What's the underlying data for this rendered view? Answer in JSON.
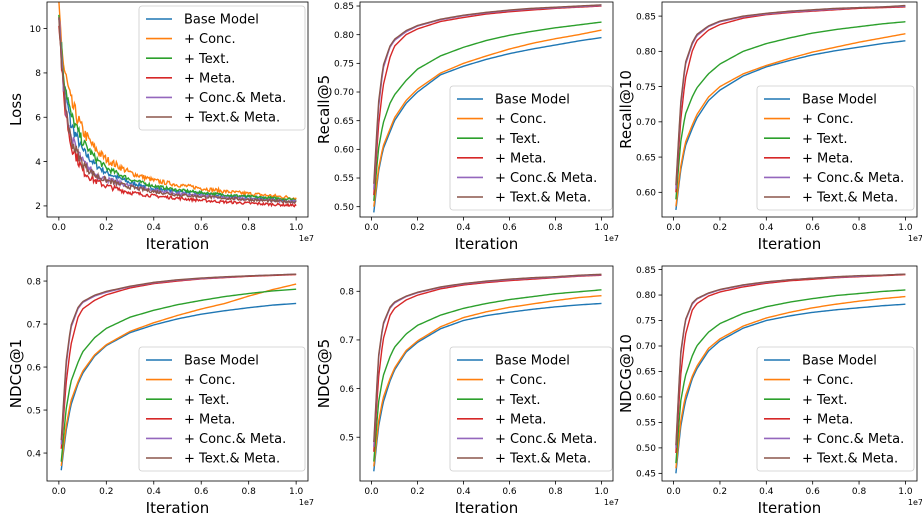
{
  "figure": {
    "legend_labels": [
      "Base Model",
      "+ Conc.",
      "+ Text.",
      "+ Meta.",
      "+ Conc.& Meta.",
      "+ Text.& Meta."
    ],
    "colors": [
      "#1f77b4",
      "#ff7f0e",
      "#2ca02c",
      "#d62728",
      "#9467bd",
      "#8c564b"
    ]
  },
  "chart_data": [
    {
      "type": "line",
      "xlabel": "Iteration",
      "ylabel": "Loss",
      "x_offset_label": "1e7",
      "xlim": [
        -0.05,
        1.05
      ],
      "ylim": [
        1.5,
        11.2
      ],
      "xticks": [
        0.0,
        0.2,
        0.4,
        0.6,
        0.8,
        1.0
      ],
      "xtick_labels": [
        "0.0",
        "0.2",
        "0.4",
        "0.6",
        "0.8",
        "1.0"
      ],
      "yticks": [
        2,
        4,
        6,
        8,
        10
      ],
      "ytick_labels": [
        "2",
        "4",
        "6",
        "8",
        "10"
      ],
      "legend_position": "top-right",
      "noisy": true,
      "x": [
        0.0,
        0.02,
        0.05,
        0.1,
        0.15,
        0.2,
        0.3,
        0.4,
        0.5,
        0.6,
        0.7,
        0.8,
        0.9,
        1.0
      ],
      "series": [
        {
          "name": "Base Model",
          "values": [
            10.8,
            7.6,
            5.7,
            4.5,
            3.9,
            3.5,
            3.05,
            2.8,
            2.65,
            2.55,
            2.45,
            2.4,
            2.3,
            2.2
          ]
        },
        {
          "name": "+ Conc.",
          "values": [
            10.9,
            8.3,
            6.7,
            5.4,
            4.6,
            4.1,
            3.5,
            3.15,
            2.95,
            2.8,
            2.65,
            2.55,
            2.45,
            2.35
          ]
        },
        {
          "name": "+ Text.",
          "values": [
            10.7,
            7.9,
            6.1,
            4.9,
            4.2,
            3.7,
            3.2,
            2.9,
            2.72,
            2.6,
            2.5,
            2.42,
            2.35,
            2.3
          ]
        },
        {
          "name": "+ Meta.",
          "values": [
            10.5,
            6.8,
            4.8,
            3.6,
            3.15,
            2.9,
            2.6,
            2.45,
            2.35,
            2.25,
            2.18,
            2.12,
            2.07,
            2.02
          ]
        },
        {
          "name": "+ Conc.& Meta.",
          "values": [
            10.6,
            7.2,
            5.1,
            4.0,
            3.45,
            3.2,
            2.9,
            2.7,
            2.55,
            2.45,
            2.38,
            2.3,
            2.25,
            2.2
          ]
        },
        {
          "name": "+ Text.& Meta.",
          "values": [
            10.6,
            7.1,
            5.0,
            3.9,
            3.4,
            3.15,
            2.85,
            2.65,
            2.5,
            2.42,
            2.35,
            2.28,
            2.22,
            2.18
          ]
        }
      ]
    },
    {
      "type": "line",
      "xlabel": "Iteration",
      "ylabel": "Recall@5",
      "x_offset_label": "1e7",
      "xlim": [
        -0.05,
        1.05
      ],
      "ylim": [
        0.482,
        0.857
      ],
      "xticks": [
        0.0,
        0.2,
        0.4,
        0.6,
        0.8,
        1.0
      ],
      "xtick_labels": [
        "0.0",
        "0.2",
        "0.4",
        "0.6",
        "0.8",
        "1.0"
      ],
      "yticks": [
        0.5,
        0.55,
        0.6,
        0.65,
        0.7,
        0.75,
        0.8,
        0.85
      ],
      "ytick_labels": [
        "0.50",
        "0.55",
        "0.60",
        "0.65",
        "0.70",
        "0.75",
        "0.80",
        "0.85"
      ],
      "legend_position": "lower-right",
      "x": [
        0.01,
        0.03,
        0.05,
        0.08,
        0.1,
        0.15,
        0.2,
        0.3,
        0.4,
        0.5,
        0.6,
        0.7,
        0.8,
        0.9,
        1.0
      ],
      "series": [
        {
          "name": "Base Model",
          "values": [
            0.49,
            0.56,
            0.6,
            0.63,
            0.65,
            0.68,
            0.7,
            0.73,
            0.745,
            0.757,
            0.767,
            0.775,
            0.782,
            0.789,
            0.795
          ]
        },
        {
          "name": "+ Conc.",
          "values": [
            0.5,
            0.565,
            0.605,
            0.635,
            0.655,
            0.685,
            0.705,
            0.733,
            0.75,
            0.763,
            0.775,
            0.785,
            0.793,
            0.8,
            0.808
          ]
        },
        {
          "name": "+ Text.",
          "values": [
            0.51,
            0.6,
            0.645,
            0.68,
            0.695,
            0.72,
            0.74,
            0.763,
            0.778,
            0.79,
            0.799,
            0.806,
            0.812,
            0.817,
            0.822
          ]
        },
        {
          "name": "+ Meta.",
          "values": [
            0.52,
            0.64,
            0.71,
            0.76,
            0.78,
            0.8,
            0.81,
            0.823,
            0.83,
            0.836,
            0.84,
            0.843,
            0.846,
            0.848,
            0.85
          ]
        },
        {
          "name": "+ Conc.& Meta.",
          "values": [
            0.53,
            0.67,
            0.74,
            0.778,
            0.79,
            0.805,
            0.815,
            0.826,
            0.833,
            0.838,
            0.842,
            0.845,
            0.847,
            0.849,
            0.851
          ]
        },
        {
          "name": "+ Text.& Meta.",
          "values": [
            0.54,
            0.68,
            0.745,
            0.78,
            0.792,
            0.807,
            0.816,
            0.827,
            0.834,
            0.839,
            0.843,
            0.846,
            0.848,
            0.85,
            0.852
          ]
        }
      ]
    },
    {
      "type": "line",
      "xlabel": "Iteration",
      "ylabel": "Recall@10",
      "x_offset_label": "1e7",
      "xlim": [
        -0.05,
        1.05
      ],
      "ylim": [
        0.565,
        0.87
      ],
      "xticks": [
        0.0,
        0.2,
        0.4,
        0.6,
        0.8,
        1.0
      ],
      "xtick_labels": [
        "0.0",
        "0.2",
        "0.4",
        "0.6",
        "0.8",
        "1.0"
      ],
      "yticks": [
        0.6,
        0.65,
        0.7,
        0.75,
        0.8,
        0.85
      ],
      "ytick_labels": [
        "0.60",
        "0.65",
        "0.70",
        "0.75",
        "0.80",
        "0.85"
      ],
      "legend_position": "lower-right",
      "x": [
        0.01,
        0.03,
        0.05,
        0.08,
        0.1,
        0.15,
        0.2,
        0.3,
        0.4,
        0.5,
        0.6,
        0.7,
        0.8,
        0.9,
        1.0
      ],
      "series": [
        {
          "name": "Base Model",
          "values": [
            0.575,
            0.63,
            0.665,
            0.69,
            0.705,
            0.73,
            0.745,
            0.765,
            0.778,
            0.787,
            0.795,
            0.801,
            0.806,
            0.811,
            0.815
          ]
        },
        {
          "name": "+ Conc.",
          "values": [
            0.58,
            0.635,
            0.67,
            0.695,
            0.71,
            0.735,
            0.75,
            0.768,
            0.78,
            0.79,
            0.799,
            0.806,
            0.813,
            0.819,
            0.825
          ]
        },
        {
          "name": "+ Text.",
          "values": [
            0.59,
            0.67,
            0.71,
            0.735,
            0.748,
            0.768,
            0.782,
            0.8,
            0.811,
            0.819,
            0.826,
            0.831,
            0.835,
            0.839,
            0.842
          ]
        },
        {
          "name": "+ Meta.",
          "values": [
            0.6,
            0.7,
            0.76,
            0.8,
            0.815,
            0.83,
            0.838,
            0.847,
            0.852,
            0.855,
            0.857,
            0.859,
            0.861,
            0.862,
            0.863
          ]
        },
        {
          "name": "+ Conc.& Meta.",
          "values": [
            0.605,
            0.72,
            0.78,
            0.81,
            0.822,
            0.835,
            0.842,
            0.849,
            0.853,
            0.856,
            0.858,
            0.86,
            0.862,
            0.863,
            0.864
          ]
        },
        {
          "name": "+ Text.& Meta.",
          "values": [
            0.61,
            0.725,
            0.783,
            0.812,
            0.824,
            0.836,
            0.843,
            0.85,
            0.854,
            0.857,
            0.859,
            0.861,
            0.862,
            0.863,
            0.865
          ]
        }
      ]
    },
    {
      "type": "line",
      "xlabel": "Iteration",
      "ylabel": "NDCG@1",
      "x_offset_label": "1e7",
      "xlim": [
        -0.05,
        1.05
      ],
      "ylim": [
        0.335,
        0.835
      ],
      "xticks": [
        0.0,
        0.2,
        0.4,
        0.6,
        0.8,
        1.0
      ],
      "xtick_labels": [
        "0.0",
        "0.2",
        "0.4",
        "0.6",
        "0.8",
        "1.0"
      ],
      "yticks": [
        0.4,
        0.5,
        0.6,
        0.7,
        0.8
      ],
      "ytick_labels": [
        "0.4",
        "0.5",
        "0.6",
        "0.7",
        "0.8"
      ],
      "legend_position": "lower-right",
      "x": [
        0.01,
        0.03,
        0.05,
        0.08,
        0.1,
        0.15,
        0.2,
        0.3,
        0.4,
        0.5,
        0.6,
        0.7,
        0.8,
        0.9,
        1.0
      ],
      "series": [
        {
          "name": "Base Model",
          "values": [
            0.36,
            0.45,
            0.51,
            0.56,
            0.585,
            0.625,
            0.65,
            0.68,
            0.698,
            0.712,
            0.723,
            0.731,
            0.738,
            0.744,
            0.748
          ]
        },
        {
          "name": "+ Conc.",
          "values": [
            0.37,
            0.46,
            0.52,
            0.565,
            0.59,
            0.628,
            0.652,
            0.683,
            0.703,
            0.72,
            0.735,
            0.748,
            0.765,
            0.78,
            0.793
          ]
        },
        {
          "name": "+ Text.",
          "values": [
            0.38,
            0.5,
            0.565,
            0.61,
            0.635,
            0.668,
            0.69,
            0.716,
            0.732,
            0.745,
            0.755,
            0.764,
            0.771,
            0.777,
            0.781
          ]
        },
        {
          "name": "+ Meta.",
          "values": [
            0.41,
            0.56,
            0.65,
            0.715,
            0.735,
            0.755,
            0.768,
            0.784,
            0.794,
            0.8,
            0.805,
            0.808,
            0.811,
            0.813,
            0.815
          ]
        },
        {
          "name": "+ Conc.& Meta.",
          "values": [
            0.42,
            0.6,
            0.69,
            0.735,
            0.75,
            0.765,
            0.774,
            0.787,
            0.796,
            0.802,
            0.806,
            0.809,
            0.812,
            0.814,
            0.816
          ]
        },
        {
          "name": "+ Text.& Meta.",
          "values": [
            0.43,
            0.61,
            0.695,
            0.738,
            0.752,
            0.767,
            0.776,
            0.788,
            0.797,
            0.803,
            0.807,
            0.81,
            0.812,
            0.814,
            0.816
          ]
        }
      ]
    },
    {
      "type": "line",
      "xlabel": "Iteration",
      "ylabel": "NDCG@5",
      "x_offset_label": "1e7",
      "xlim": [
        -0.05,
        1.05
      ],
      "ylim": [
        0.41,
        0.852
      ],
      "xticks": [
        0.0,
        0.2,
        0.4,
        0.6,
        0.8,
        1.0
      ],
      "xtick_labels": [
        "0.0",
        "0.2",
        "0.4",
        "0.6",
        "0.8",
        "1.0"
      ],
      "yticks": [
        0.5,
        0.6,
        0.7,
        0.8
      ],
      "ytick_labels": [
        "0.5",
        "0.6",
        "0.7",
        "0.8"
      ],
      "legend_position": "lower-right",
      "x": [
        0.01,
        0.03,
        0.05,
        0.08,
        0.1,
        0.15,
        0.2,
        0.3,
        0.4,
        0.5,
        0.6,
        0.7,
        0.8,
        0.9,
        1.0
      ],
      "series": [
        {
          "name": "Base Model",
          "values": [
            0.43,
            0.52,
            0.57,
            0.615,
            0.638,
            0.675,
            0.695,
            0.723,
            0.74,
            0.75,
            0.757,
            0.763,
            0.768,
            0.772,
            0.775
          ]
        },
        {
          "name": "+ Conc.",
          "values": [
            0.44,
            0.53,
            0.58,
            0.62,
            0.642,
            0.678,
            0.698,
            0.727,
            0.746,
            0.758,
            0.767,
            0.774,
            0.781,
            0.787,
            0.791
          ]
        },
        {
          "name": "+ Text.",
          "values": [
            0.45,
            0.57,
            0.625,
            0.665,
            0.685,
            0.712,
            0.73,
            0.751,
            0.765,
            0.775,
            0.783,
            0.789,
            0.795,
            0.799,
            0.803
          ]
        },
        {
          "name": "+ Meta.",
          "values": [
            0.47,
            0.62,
            0.7,
            0.75,
            0.765,
            0.782,
            0.792,
            0.805,
            0.813,
            0.818,
            0.822,
            0.825,
            0.828,
            0.831,
            0.833
          ]
        },
        {
          "name": "+ Conc.& Meta.",
          "values": [
            0.48,
            0.66,
            0.73,
            0.765,
            0.776,
            0.789,
            0.797,
            0.808,
            0.815,
            0.82,
            0.824,
            0.827,
            0.829,
            0.832,
            0.834
          ]
        },
        {
          "name": "+ Text.& Meta.",
          "values": [
            0.49,
            0.665,
            0.733,
            0.767,
            0.778,
            0.79,
            0.798,
            0.809,
            0.816,
            0.821,
            0.825,
            0.828,
            0.83,
            0.833,
            0.835
          ]
        }
      ]
    },
    {
      "type": "line",
      "xlabel": "Iteration",
      "ylabel": "NDCG@10",
      "x_offset_label": "1e7",
      "xlim": [
        -0.05,
        1.05
      ],
      "ylim": [
        0.435,
        0.857
      ],
      "xticks": [
        0.0,
        0.2,
        0.4,
        0.6,
        0.8,
        1.0
      ],
      "xtick_labels": [
        "0.0",
        "0.2",
        "0.4",
        "0.6",
        "0.8",
        "1.0"
      ],
      "yticks": [
        0.45,
        0.5,
        0.55,
        0.6,
        0.65,
        0.7,
        0.75,
        0.8,
        0.85
      ],
      "ytick_labels": [
        "0.45",
        "0.50",
        "0.55",
        "0.60",
        "0.65",
        "0.70",
        "0.75",
        "0.80",
        "0.85"
      ],
      "legend_position": "lower-right",
      "x": [
        0.01,
        0.03,
        0.05,
        0.08,
        0.1,
        0.15,
        0.2,
        0.3,
        0.4,
        0.5,
        0.6,
        0.7,
        0.8,
        0.9,
        1.0
      ],
      "series": [
        {
          "name": "Base Model",
          "values": [
            0.45,
            0.54,
            0.59,
            0.635,
            0.655,
            0.69,
            0.71,
            0.735,
            0.75,
            0.759,
            0.766,
            0.771,
            0.775,
            0.779,
            0.782
          ]
        },
        {
          "name": "+ Conc.",
          "values": [
            0.46,
            0.55,
            0.6,
            0.64,
            0.66,
            0.695,
            0.714,
            0.739,
            0.755,
            0.766,
            0.775,
            0.782,
            0.788,
            0.793,
            0.797
          ]
        },
        {
          "name": "+ Text.",
          "values": [
            0.47,
            0.59,
            0.64,
            0.68,
            0.7,
            0.727,
            0.744,
            0.764,
            0.777,
            0.786,
            0.793,
            0.799,
            0.803,
            0.807,
            0.81
          ]
        },
        {
          "name": "+ Meta.",
          "values": [
            0.49,
            0.64,
            0.72,
            0.77,
            0.783,
            0.798,
            0.806,
            0.816,
            0.823,
            0.828,
            0.831,
            0.834,
            0.836,
            0.838,
            0.84
          ]
        },
        {
          "name": "+ Conc.& Meta.",
          "values": [
            0.5,
            0.68,
            0.748,
            0.782,
            0.792,
            0.803,
            0.81,
            0.819,
            0.825,
            0.83,
            0.833,
            0.835,
            0.837,
            0.839,
            0.841
          ]
        },
        {
          "name": "+ Text.& Meta.",
          "values": [
            0.505,
            0.685,
            0.75,
            0.784,
            0.793,
            0.804,
            0.811,
            0.82,
            0.826,
            0.83,
            0.833,
            0.836,
            0.838,
            0.839,
            0.841
          ]
        }
      ]
    }
  ]
}
